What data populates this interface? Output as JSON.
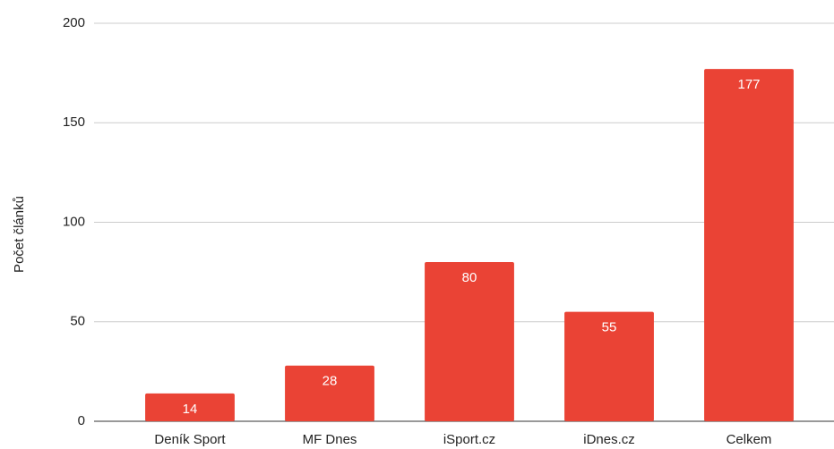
{
  "chart_data": {
    "type": "bar",
    "y_label": "Počet článků",
    "categories": [
      "Deník Sport",
      "MF Dnes",
      "iSport.cz",
      "iDnes.cz",
      "Celkem"
    ],
    "values": [
      14,
      28,
      80,
      55,
      177
    ],
    "color": "#ea4335",
    "ylim": [
      0,
      200
    ],
    "yticks": [
      0,
      50,
      100,
      150,
      200
    ],
    "grid": true,
    "data_labels": true
  }
}
